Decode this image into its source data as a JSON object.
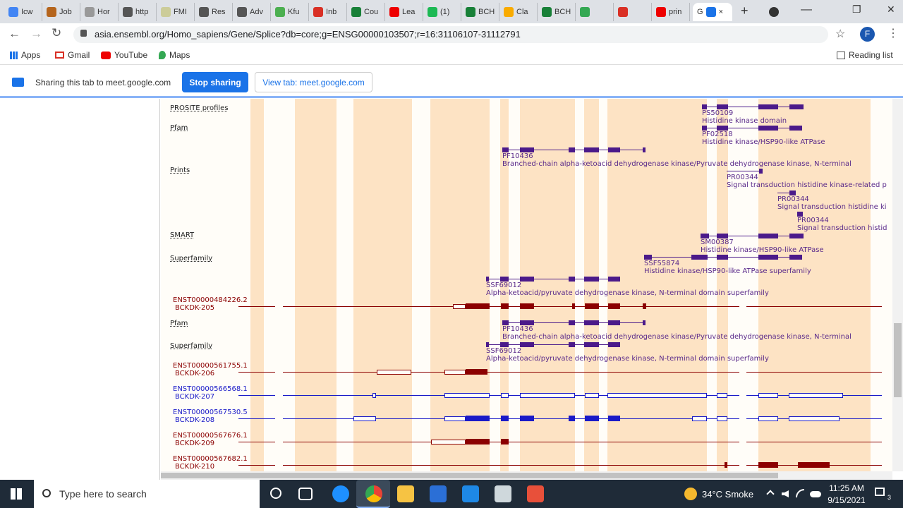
{
  "browser": {
    "tabs": [
      {
        "label": "Icw",
        "color": "#4285f4"
      },
      {
        "label": "Job",
        "color": "#b5651d"
      },
      {
        "label": "Hor",
        "color": "#999"
      },
      {
        "label": "http",
        "color": "#555"
      },
      {
        "label": "FMI",
        "color": "#cc9"
      },
      {
        "label": "Res",
        "color": "#555"
      },
      {
        "label": "Adv",
        "color": "#555"
      },
      {
        "label": "Kfu",
        "color": "#4caf50"
      },
      {
        "label": "Inb",
        "color": "#d93025"
      },
      {
        "label": "Cou",
        "color": "#188038"
      },
      {
        "label": "Lea",
        "color": "#e00"
      },
      {
        "label": "(1)",
        "color": "#1db954"
      },
      {
        "label": "BCH",
        "color": "#188038"
      },
      {
        "label": "Cla",
        "color": "#f9ab00"
      },
      {
        "label": "BCH",
        "color": "#188038"
      },
      {
        "label": "",
        "color": "#34a853"
      },
      {
        "label": "",
        "color": "#d93025"
      },
      {
        "label": "prin",
        "color": "#e00"
      }
    ],
    "active_tab": {
      "label": "G",
      "close": "×"
    },
    "new_tab": "+",
    "window_controls": {
      "minimize": "—",
      "restore": "❐",
      "close": "✕"
    },
    "url": "asia.ensembl.org/Homo_sapiens/Gene/Splice?db=core;g=ENSG00000103507;r=16:31106107-31112791",
    "profile_initial": "F",
    "bookmarks": [
      "Apps",
      "Gmail",
      "YouTube",
      "Maps"
    ],
    "reading_list": "Reading list",
    "sharing": {
      "text": "Sharing this tab to meet.google.com",
      "stop": "Stop sharing",
      "view": "View tab: meet.google.com"
    }
  },
  "tracks": {
    "labels": [
      {
        "text": "PROSITE profiles"
      },
      {
        "text": "Pfam"
      },
      {
        "text": "Prints"
      },
      {
        "text": "SMART"
      },
      {
        "text": "Superfamily"
      },
      {
        "text": "Pfam"
      },
      {
        "text": "Superfamily"
      }
    ],
    "features": [
      {
        "id": "PS50109",
        "desc": "Histidine kinase domain"
      },
      {
        "id": "PF02518",
        "desc": "Histidine kinase/HSP90-like ATPase"
      },
      {
        "id": "PF10436",
        "desc": "Branched-chain alpha-ketoacid dehydrogenase kinase/Pyruvate dehydrogenase kinase, N-terminal"
      },
      {
        "id": "PR00344",
        "desc": "Signal transduction histidine kinase-related p"
      },
      {
        "id": "PR00344",
        "desc": "Signal transduction histidine ki"
      },
      {
        "id": "PR00344",
        "desc": "Signal transduction histid"
      },
      {
        "id": "SM00387",
        "desc": "Histidine kinase/HSP90-like ATPase"
      },
      {
        "id": "SSF55874",
        "desc": "Histidine kinase/HSP90-like ATPase superfamily"
      },
      {
        "id": "SSF69012",
        "desc": "Alpha-ketoacid/pyruvate dehydrogenase kinase, N-terminal domain superfamily"
      },
      {
        "id": "PF10436",
        "desc": "Branched-chain alpha-ketoacid dehydrogenase kinase/Pyruvate dehydrogenase kinase, N-terminal"
      },
      {
        "id": "SSF69012",
        "desc": "Alpha-ketoacid/pyruvate dehydrogenase kinase, N-terminal domain superfamily"
      }
    ],
    "transcripts": [
      {
        "id": "ENST00000484226.2",
        "name": "BCKDK-205",
        "color": "#8b0000"
      },
      {
        "id": "ENST00000561755.1",
        "name": "BCKDK-206",
        "color": "#8b0000"
      },
      {
        "id": "ENST00000566568.1",
        "name": "BCKDK-207",
        "color": "#1a1ac8"
      },
      {
        "id": "ENST00000567530.5",
        "name": "BCKDK-208",
        "color": "#1a1ac8"
      },
      {
        "id": "ENST00000567676.1",
        "name": "BCKDK-209",
        "color": "#8b0000"
      },
      {
        "id": "ENST00000567682.1",
        "name": "BCKDK-210",
        "color": "#8b0000"
      }
    ],
    "domain_color": "#4b1a8a",
    "exon_highlight_color": "#fde3c4"
  },
  "taskbar": {
    "search_placeholder": "Type here to search",
    "weather": "34°C  Smoke",
    "time": "11:25 AM",
    "date": "9/15/2021",
    "notifications": "3"
  }
}
